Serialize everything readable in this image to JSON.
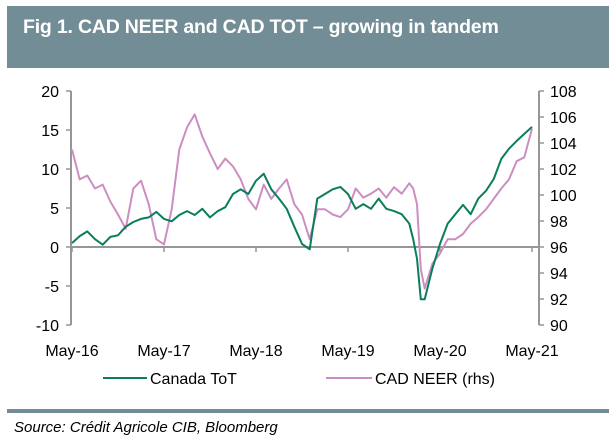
{
  "header": {
    "title": "Fig 1. CAD NEER and CAD TOT – growing in tandem"
  },
  "source": "Source: Crédit Agricole CIB, Bloomberg",
  "colors": {
    "title_bg": "#728d96",
    "canada_tot": "#0a7e5b",
    "cad_neer": "#cc8ec2",
    "axis": "#969696"
  },
  "chart_data": {
    "type": "line",
    "title": "Fig 1. CAD NEER and CAD TOT – growing in tandem",
    "xlabel": "",
    "ylabel": "",
    "x_tick_labels": [
      "May-16",
      "May-17",
      "May-18",
      "May-19",
      "May-20",
      "May-21"
    ],
    "x_range": [
      0,
      60
    ],
    "x_unit": "months since May-16",
    "y_left": {
      "range": [
        -10,
        20
      ],
      "ticks": [
        20,
        15,
        10,
        5,
        0,
        -5,
        -10
      ]
    },
    "y_right": {
      "label": "rhs",
      "range": [
        90,
        108
      ],
      "ticks": [
        108,
        106,
        104,
        102,
        100,
        98,
        96,
        94,
        92,
        90
      ]
    },
    "grid": false,
    "legend_position": "bottom",
    "x": [
      0,
      1,
      2,
      3,
      4,
      5,
      6,
      7,
      8,
      9,
      10,
      11,
      12,
      13,
      14,
      15,
      16,
      17,
      18,
      19,
      20,
      21,
      22,
      23,
      24,
      25,
      26,
      27,
      28,
      29,
      30,
      31,
      32,
      33,
      34,
      35,
      36,
      37,
      38,
      39,
      40,
      41,
      42,
      43,
      44,
      44.5,
      45,
      45.5,
      46,
      47,
      48,
      49,
      50,
      51,
      52,
      53,
      54,
      55,
      56,
      57,
      58,
      59,
      60
    ],
    "series": [
      {
        "name": "Canada ToT",
        "axis": "left",
        "values": [
          0.5,
          1.4,
          2.0,
          1.0,
          0.3,
          1.3,
          1.5,
          2.6,
          3.2,
          3.6,
          3.8,
          4.5,
          3.6,
          3.3,
          4.1,
          4.6,
          4.1,
          4.9,
          3.8,
          4.6,
          5.1,
          6.8,
          7.4,
          6.8,
          8.5,
          9.4,
          7.4,
          6.2,
          4.9,
          2.6,
          0.4,
          -0.3,
          6.2,
          6.8,
          7.4,
          7.7,
          6.8,
          4.9,
          5.5,
          4.9,
          6.2,
          4.9,
          4.6,
          4.2,
          3.0,
          1.0,
          -1.5,
          -6.7,
          -6.7,
          -2.8,
          0.4,
          3.0,
          4.2,
          5.4,
          4.2,
          6.2,
          7.2,
          8.7,
          11.3,
          12.6,
          13.6,
          14.5,
          15.4
        ]
      },
      {
        "name": "CAD NEER (rhs)",
        "axis": "right",
        "values": [
          103.5,
          101.2,
          101.5,
          100.5,
          100.8,
          99.5,
          98.5,
          97.4,
          100.5,
          101.1,
          99.3,
          96.6,
          96.2,
          98.9,
          103.5,
          105.2,
          106.2,
          104.5,
          103.2,
          102.0,
          102.8,
          102.2,
          101.2,
          99.7,
          98.9,
          100.8,
          99.7,
          100.5,
          101.2,
          99.3,
          98.5,
          96.6,
          98.9,
          98.9,
          98.5,
          98.3,
          98.9,
          100.5,
          99.8,
          100.1,
          100.5,
          99.8,
          100.6,
          100.1,
          100.9,
          100.5,
          99.3,
          94.3,
          92.8,
          94.7,
          95.5,
          96.6,
          96.6,
          97.0,
          97.8,
          98.3,
          98.9,
          99.7,
          100.5,
          101.2,
          102.6,
          102.9,
          105.1
        ]
      }
    ]
  }
}
